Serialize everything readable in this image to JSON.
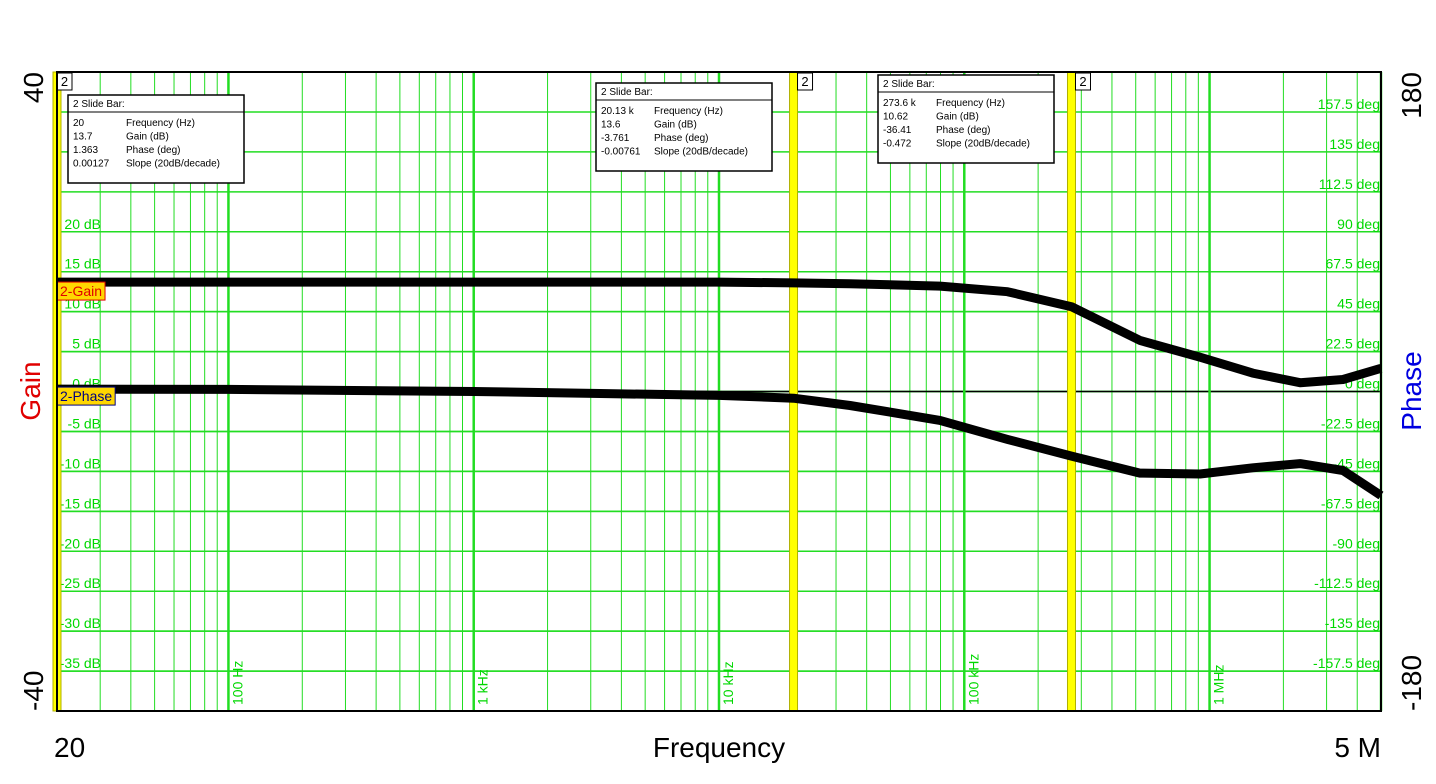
{
  "chart_data": {
    "type": "line",
    "log_x": true,
    "grid": true,
    "minor_grid": true,
    "x_label": "Frequency",
    "y_label": "Gain",
    "y2_label": "Phase",
    "xlim": [
      20,
      5000000
    ],
    "xticks": [
      20,
      {
        "value": 100,
        "label": "100 Hz"
      },
      {
        "value": 1000,
        "label": "1 kHz"
      },
      {
        "value": 10000,
        "label": "10 kHz"
      },
      {
        "value": 100000,
        "label": "100 kHz"
      },
      {
        "value": 1000000,
        "label": "1 MHz"
      },
      {
        "value": 5000000,
        "label": "5 M"
      }
    ],
    "ylim": [
      -40,
      40
    ],
    "yticks": [
      {
        "value": 20,
        "label": "20 dB"
      },
      {
        "value": 15,
        "label": "15 dB"
      },
      {
        "value": 10,
        "label": "10 dB"
      },
      {
        "value": 5,
        "label": "5 dB"
      },
      {
        "value": 0,
        "label": "0 dB"
      },
      {
        "value": -5,
        "label": "-5 dB"
      },
      {
        "value": -10,
        "label": "-10 dB"
      },
      {
        "value": -15,
        "label": "-15 dB"
      },
      {
        "value": -20,
        "label": "-20 dB"
      },
      {
        "value": -25,
        "label": "-25 dB"
      },
      {
        "value": -30,
        "label": "-30 dB"
      },
      {
        "value": -35,
        "label": "-35 dB"
      }
    ],
    "y2lim": [
      -180,
      180
    ],
    "y2ticks": [
      {
        "value": 157.5,
        "label": "157.5 deg"
      },
      {
        "value": 135,
        "label": "135 deg"
      },
      {
        "value": 112.5,
        "label": "112.5 deg"
      },
      {
        "value": 90,
        "label": "90 deg"
      },
      {
        "value": 67.5,
        "label": "67.5 deg"
      },
      {
        "value": 45,
        "label": "45 deg"
      },
      {
        "value": 22.5,
        "label": "22.5 deg"
      },
      {
        "value": 0,
        "label": "0 deg"
      },
      {
        "value": -22.5,
        "label": "-22.5 deg"
      },
      {
        "value": -45,
        "label": "-45 deg"
      },
      {
        "value": -67.5,
        "label": "-67.5 deg"
      },
      {
        "value": -90,
        "label": "-90 deg"
      },
      {
        "value": -112.5,
        "label": "-112.5 deg"
      },
      {
        "value": -135,
        "label": "-135 deg"
      },
      {
        "value": -157.5,
        "label": "-157.5 deg"
      }
    ],
    "x": [
      20,
      100,
      1000,
      3270,
      10000,
      20130,
      34200,
      79600,
      150000,
      273600,
      520000,
      914000,
      1500000,
      2340000,
      3500000,
      5000000
    ],
    "series": [
      {
        "name": "2-Gain",
        "color": "#000000",
        "values": [
          13.7,
          13.7,
          13.7,
          13.7,
          13.7,
          13.6,
          13.5,
          13.2,
          12.5,
          10.62,
          6.4,
          4.3,
          2.3,
          1.1,
          1.5,
          2.9
        ]
      },
      {
        "name": "2-Phase",
        "color": "#000000",
        "axis": "y2",
        "values": [
          1.363,
          1.2,
          0,
          -1.1,
          -2.2,
          -3.761,
          -7.9,
          -16.3,
          -27,
          -36.41,
          -46,
          -46.5,
          -43,
          -40.6,
          -44.5,
          -58.6
        ]
      }
    ],
    "cursors": [
      {
        "label": "2",
        "frequency": 20,
        "title": "2  Slide Bar:",
        "rows": [
          [
            "20",
            "Frequency (Hz)"
          ],
          [
            "13.7",
            "Gain (dB)"
          ],
          [
            "1.363",
            "Phase (deg)"
          ],
          [
            "0.00127",
            "Slope (20dB/decade)"
          ]
        ]
      },
      {
        "label": "2",
        "frequency": 20130,
        "title": "2  Slide Bar:",
        "rows": [
          [
            "20.13 k",
            "Frequency (Hz)"
          ],
          [
            "13.6",
            "Gain (dB)"
          ],
          [
            "-3.761",
            "Phase (deg)"
          ],
          [
            "-0.00761",
            "Slope (20dB/decade)"
          ]
        ]
      },
      {
        "label": "2",
        "frequency": 273600,
        "title": "2  Slide Bar:",
        "rows": [
          [
            "273.6 k",
            "Frequency (Hz)"
          ],
          [
            "10.62",
            "Gain (dB)"
          ],
          [
            "-36.41",
            "Phase (deg)"
          ],
          [
            "-0.472",
            "Slope (20dB/decade)"
          ]
        ]
      }
    ]
  }
}
